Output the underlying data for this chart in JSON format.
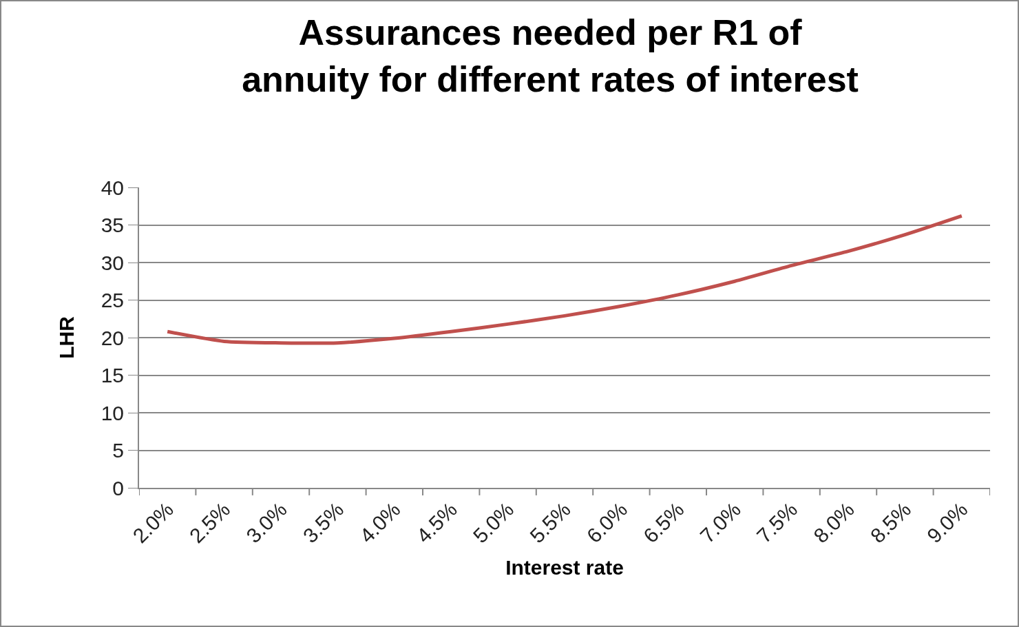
{
  "chart_data": {
    "type": "line",
    "title": "Assurances needed per R1 of\nannuity for different rates of interest",
    "xlabel": "Interest rate",
    "ylabel": "LHR",
    "categories": [
      "2.0%",
      "2.5%",
      "3.0%",
      "3.5%",
      "4.0%",
      "4.5%",
      "5.0%",
      "5.5%",
      "6.0%",
      "6.5%",
      "7.0%",
      "7.5%",
      "8.0%",
      "8.5%",
      "9.0%"
    ],
    "series": [
      {
        "color": "#c0504d",
        "values": [
          20.8,
          19.5,
          19.3,
          19.3,
          19.9,
          20.8,
          21.8,
          22.9,
          24.2,
          25.7,
          27.5,
          29.6,
          31.5,
          33.7,
          36.2
        ]
      }
    ],
    "ylim": [
      0,
      40
    ],
    "yticks": [
      0,
      5,
      10,
      15,
      20,
      25,
      30,
      35,
      40
    ],
    "grid": "y",
    "marker": "none",
    "line_style": "solid"
  }
}
